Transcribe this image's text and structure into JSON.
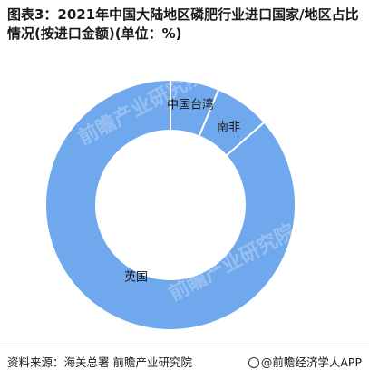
{
  "title": "图表3：2021年中国大陆地区磷肥行业进口国家/地区占比情况(按进口金额)(单位：%)",
  "source": "资料来源：海关总署 前瞻产业研究院",
  "brand": "@前瞻经济学人APP",
  "watermark": "前瞻产业研究院",
  "colors": {
    "slice_fill": "#6fa8ec",
    "slice_stroke": "#ffffff"
  },
  "chart_data": {
    "type": "pie",
    "donut": true,
    "categories": [
      "中国台湾",
      "南非",
      "英国"
    ],
    "values": [
      6.3,
      7.2,
      86.5
    ],
    "legend": "none"
  }
}
